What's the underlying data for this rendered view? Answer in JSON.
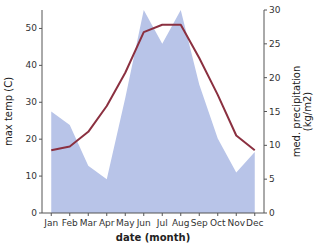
{
  "chart_data": {
    "type": "line",
    "categories": [
      "Jan",
      "Feb",
      "Mar",
      "Apr",
      "May",
      "Jun",
      "Jul",
      "Aug",
      "Sep",
      "Oct",
      "Nov",
      "Dec"
    ],
    "xlabel": "date (month)",
    "ylabel": "max temp (C)",
    "y2label": "med. precipitation\n(kg/m2)",
    "ylim": [
      0,
      55
    ],
    "yticks": [
      0,
      10,
      20,
      30,
      40,
      50
    ],
    "y2lim": [
      0,
      30
    ],
    "y2ticks": [
      0,
      5,
      10,
      15,
      20,
      25,
      30
    ],
    "grid": false,
    "series": [
      {
        "type": "area",
        "axis": "y2",
        "color": "#b8c4e8",
        "values": [
          15,
          13,
          7,
          5,
          17,
          30,
          25,
          30,
          19,
          11,
          6,
          9
        ]
      },
      {
        "type": "line",
        "color": "#8B3040",
        "values": [
          17,
          18,
          22,
          29,
          38,
          49,
          51,
          51,
          42,
          32,
          21,
          17
        ]
      }
    ]
  }
}
